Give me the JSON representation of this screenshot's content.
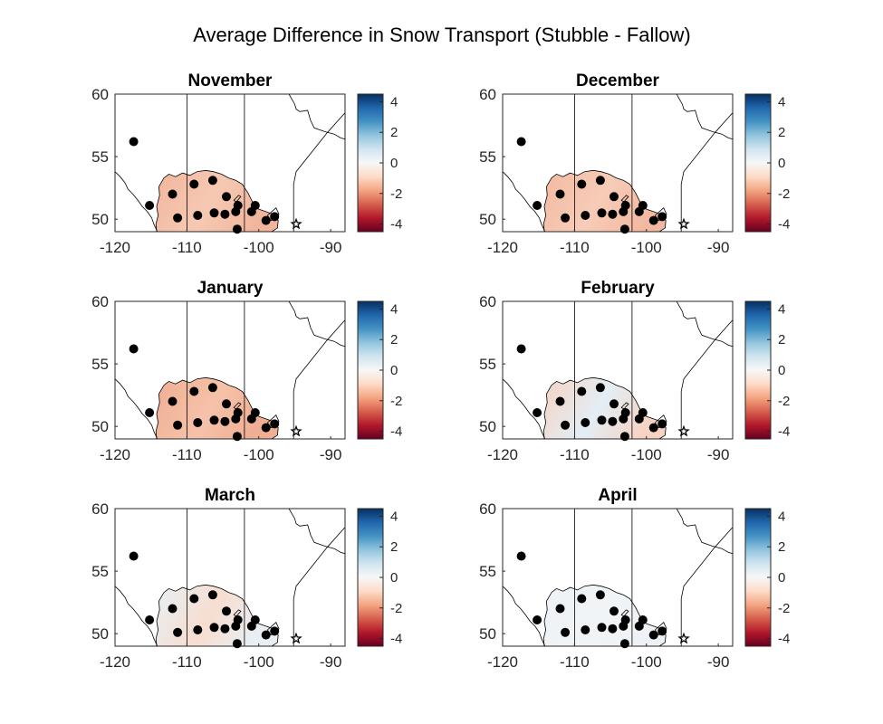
{
  "figure": {
    "title": "Average Difference in Snow Transport (Stubble - Fallow)"
  },
  "colorbar": {
    "range": [
      -4.5,
      4.5
    ],
    "ticks": [
      4,
      2,
      0,
      -2,
      -4
    ],
    "colors": [
      "#67001f",
      "#b2182b",
      "#d6604d",
      "#f4a582",
      "#fddbc7",
      "#f7f7f7",
      "#d1e5f0",
      "#92c5de",
      "#4393c3",
      "#2166ac",
      "#053061"
    ]
  },
  "axes": {
    "xlim": [
      -120,
      -88
    ],
    "ylim": [
      49,
      60
    ],
    "xticks": [
      -120,
      -110,
      -100,
      -90
    ],
    "yticks": [
      60,
      55,
      50
    ]
  },
  "map_colors": {
    "border": "#000000",
    "station": "#000000"
  },
  "chart_data": [
    {
      "type": "heatmap",
      "title": "November",
      "field_color": "#f6c9b3",
      "field_secondary": "#f2b59c"
    },
    {
      "type": "heatmap",
      "title": "December",
      "field_color": "#f7ccb8",
      "field_secondary": "#f3b9a0"
    },
    {
      "type": "heatmap",
      "title": "January",
      "field_color": "#f5c2a9",
      "field_secondary": "#f0ae93"
    },
    {
      "type": "heatmap",
      "title": "February",
      "field_color": "#e3eef5",
      "field_secondary": "#f6d3c2"
    },
    {
      "type": "heatmap",
      "title": "March",
      "field_color": "#f7ddd0",
      "field_secondary": "#e8f0f5"
    },
    {
      "type": "heatmap",
      "title": "April",
      "field_color": "#f1f4f6",
      "field_secondary": "#eef2f6"
    }
  ],
  "stations": [
    [
      -117.4,
      56.2
    ],
    [
      -115.2,
      51.1
    ],
    [
      -112.0,
      52.0
    ],
    [
      -111.3,
      50.1
    ],
    [
      -109.0,
      52.8
    ],
    [
      -108.5,
      50.3
    ],
    [
      -106.4,
      53.1
    ],
    [
      -106.2,
      50.5
    ],
    [
      -104.5,
      51.8
    ],
    [
      -104.7,
      50.4
    ],
    [
      -103.2,
      50.6
    ],
    [
      -102.9,
      51.1
    ],
    [
      -103.0,
      49.2
    ],
    [
      -100.5,
      51.1
    ],
    [
      -101.0,
      50.6
    ],
    [
      -99.0,
      49.9
    ],
    [
      -97.8,
      50.2
    ]
  ],
  "star": [
    -94.8,
    49.6
  ]
}
